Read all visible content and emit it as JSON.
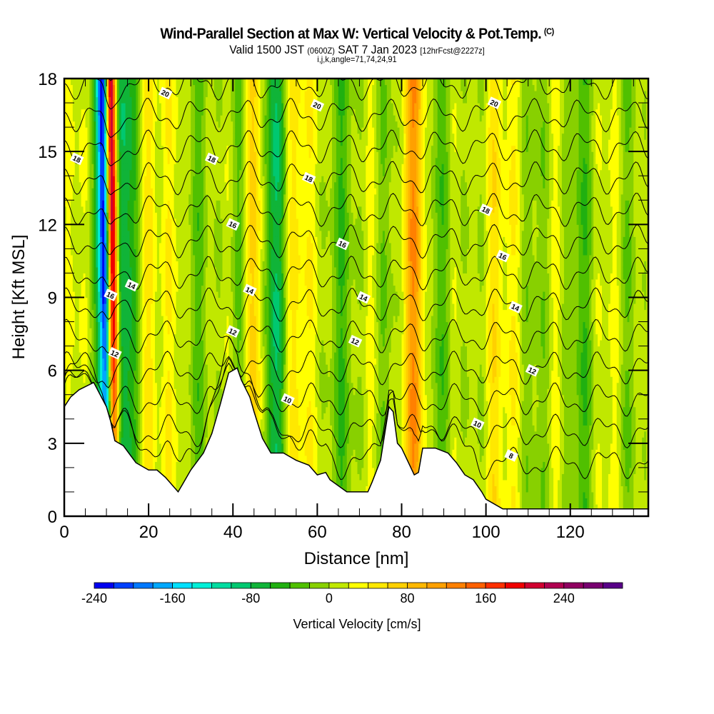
{
  "header": {
    "title": "Wind-Parallel Section at Max W: Vertical Velocity & Pot.Temp.",
    "copyright_mark": "(C)",
    "valid_prefix": "Valid 1500 JST",
    "valid_utc": "(0600Z)",
    "valid_date": "SAT 7 Jan 2023",
    "forecast": "[12hrFcst@2227z]",
    "grid_info": "i,j,k,angle=71,74,24,91"
  },
  "chart_data": {
    "type": "heatmap",
    "title": "Wind-Parallel Section at Max W: Vertical Velocity & Pot.Temp.",
    "subtitle": "Valid 1500 JST (0600Z) SAT 7 Jan 2023 [12hrFcst@2227z]",
    "xlabel": "Distance [nm]",
    "ylabel": "Height [Kft MSL]",
    "xlim": [
      0,
      138.5
    ],
    "ylim": [
      0,
      18
    ],
    "x_ticks": [
      0,
      20,
      40,
      60,
      80,
      100,
      120
    ],
    "x_minor_step": 5,
    "y_ticks": [
      0,
      3,
      6,
      9,
      12,
      15,
      18
    ],
    "y_minor_step": 1,
    "colorbar": {
      "label": "Vertical Velocity [cm/s]",
      "min": -240,
      "max": 300,
      "step": 20,
      "tick_labels": [
        -240,
        -160,
        -80,
        0,
        80,
        160,
        240
      ],
      "colors": [
        "#0000f0",
        "#0040ff",
        "#0078ff",
        "#00a8ff",
        "#00e0ff",
        "#00f0d8",
        "#00dca0",
        "#00c870",
        "#10b438",
        "#20b010",
        "#50c000",
        "#88d000",
        "#c0e800",
        "#ffff00",
        "#ffe800",
        "#ffd000",
        "#ffb800",
        "#ffa000",
        "#ff8000",
        "#ff6000",
        "#ff3000",
        "#f00000",
        "#d00030",
        "#b00050",
        "#900060",
        "#780070",
        "#580088"
      ]
    },
    "velocity_features": [
      {
        "x_nm": 11.5,
        "peak_w_cms": 260,
        "note": "strong updraft"
      },
      {
        "x_nm": 9.5,
        "peak_w_cms": -220,
        "note": "strong downdraft"
      },
      {
        "x_nm": 14.5,
        "peak_w_cms": -100
      },
      {
        "x_nm": 20,
        "peak_w_cms": 60
      },
      {
        "x_nm": 45,
        "peak_w_cms": 80
      },
      {
        "x_nm": 49.5,
        "peak_w_cms": -110
      },
      {
        "x_nm": 55,
        "peak_w_cms": 60
      },
      {
        "x_nm": 83,
        "peak_w_cms": 80
      },
      {
        "x_nm": 101,
        "peak_w_cms": 60
      }
    ],
    "terrain_profile": {
      "x": [
        0,
        1.5,
        3.5,
        7,
        10,
        11,
        12,
        14,
        17,
        20,
        22,
        24,
        27,
        28,
        30,
        33,
        35,
        37,
        39,
        41,
        42,
        44,
        45,
        47,
        49,
        52,
        55,
        58,
        60,
        62,
        63,
        67,
        72,
        73,
        75,
        77,
        78,
        79,
        80,
        83,
        84,
        85,
        88,
        91,
        93,
        95,
        97,
        99,
        100,
        104,
        138.5
      ],
      "y": [
        4.5,
        4.9,
        5.2,
        5.5,
        4.5,
        3.9,
        3.1,
        2.9,
        2.2,
        1.9,
        1.9,
        1.6,
        1.0,
        1.3,
        1.9,
        2.6,
        3.4,
        4.6,
        5.9,
        6.1,
        5.6,
        4.9,
        4.3,
        3.2,
        2.6,
        2.6,
        2.3,
        2.1,
        1.7,
        1.8,
        1.5,
        1.0,
        1.0,
        1.4,
        2.3,
        4.5,
        4.3,
        3.0,
        2.8,
        1.7,
        1.8,
        2.8,
        2.8,
        2.6,
        2.2,
        1.7,
        1.5,
        1.0,
        0.7,
        0.3,
        0.3
      ]
    },
    "theta_contours": {
      "units": "C",
      "levels": [
        8,
        9,
        10,
        11,
        12,
        13,
        14,
        15,
        16,
        17,
        18,
        19,
        20,
        21,
        22
      ],
      "labels": [
        {
          "text": "20",
          "x_nm": 24,
          "y_kft": 17.4
        },
        {
          "text": "20",
          "x_nm": 60,
          "y_kft": 16.9
        },
        {
          "text": "20",
          "x_nm": 102,
          "y_kft": 17.0
        },
        {
          "text": "18",
          "x_nm": 3,
          "y_kft": 14.7
        },
        {
          "text": "18",
          "x_nm": 35,
          "y_kft": 14.7
        },
        {
          "text": "18",
          "x_nm": 58,
          "y_kft": 13.9
        },
        {
          "text": "18",
          "x_nm": 100,
          "y_kft": 12.6
        },
        {
          "text": "16",
          "x_nm": 40,
          "y_kft": 12.0
        },
        {
          "text": "16",
          "x_nm": 66,
          "y_kft": 11.2
        },
        {
          "text": "16",
          "x_nm": 104,
          "y_kft": 10.7
        },
        {
          "text": "16",
          "x_nm": 11,
          "y_kft": 9.1
        },
        {
          "text": "14",
          "x_nm": 16,
          "y_kft": 9.5
        },
        {
          "text": "14",
          "x_nm": 44,
          "y_kft": 9.3
        },
        {
          "text": "14",
          "x_nm": 71,
          "y_kft": 9.0
        },
        {
          "text": "14",
          "x_nm": 107,
          "y_kft": 8.6
        },
        {
          "text": "12",
          "x_nm": 12,
          "y_kft": 6.7
        },
        {
          "text": "12",
          "x_nm": 40,
          "y_kft": 7.6
        },
        {
          "text": "12",
          "x_nm": 69,
          "y_kft": 7.2
        },
        {
          "text": "12",
          "x_nm": 111,
          "y_kft": 6.0
        },
        {
          "text": "10",
          "x_nm": 53,
          "y_kft": 4.8
        },
        {
          "text": "10",
          "x_nm": 98,
          "y_kft": 3.8
        },
        {
          "text": "8",
          "x_nm": 106,
          "y_kft": 2.5
        }
      ]
    }
  }
}
